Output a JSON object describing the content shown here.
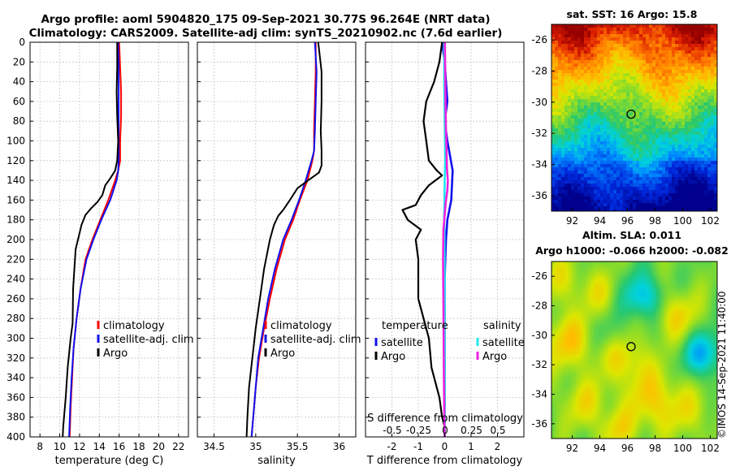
{
  "header": {
    "line1": "Argo profile: aoml 5904820_175 09-Sep-2021 30.77S 96.264E (NRT data)",
    "line2": "Climatology: CARS2009. Satellite-adj clim: synTS_20210902.nc (7.6d earlier)"
  },
  "copyright": "©IMOS 14-Sep-2021 11:40:00",
  "colors": {
    "clim": "#ff0000",
    "sat": "#1010ee",
    "argo": "#000000",
    "sal_sat": "#22e6ee",
    "sal_argo": "#ee22dd",
    "grid": "#c8c8c8",
    "marker": "#000000"
  },
  "chart_data": [
    {
      "id": "temperature",
      "type": "line",
      "xlabel": "temperature (deg C)",
      "ylabel": "",
      "xlim": [
        7,
        23
      ],
      "ylim": [
        400,
        0
      ],
      "xticks": [
        8,
        10,
        12,
        14,
        16,
        18,
        20,
        22
      ],
      "xtick_labels": [
        "8",
        "10",
        "12",
        "14",
        "16",
        "18",
        "20",
        "22"
      ],
      "yticks": [
        0,
        20,
        40,
        60,
        80,
        100,
        120,
        140,
        160,
        180,
        200,
        220,
        240,
        260,
        280,
        300,
        320,
        340,
        360,
        380,
        400
      ],
      "ytick_labels": [
        "0",
        "20",
        "40",
        "60",
        "80",
        "100",
        "120",
        "140",
        "160",
        "180",
        "200",
        "220",
        "240",
        "260",
        "280",
        "300",
        "320",
        "340",
        "360",
        "380",
        "400"
      ],
      "legend": [
        "climatology",
        "satellite-adj. clim",
        "Argo"
      ],
      "legend_placement": "center-right",
      "series": [
        {
          "name": "climatology",
          "x": [
            16.0,
            16.1,
            16.2,
            16.2,
            16.1,
            16.1,
            15.9,
            15.6,
            14.9,
            14.1,
            13.3,
            12.6,
            12.1,
            11.7,
            11.4,
            11.25,
            11.1,
            11.0
          ],
          "y": [
            0,
            25,
            50,
            75,
            100,
            120,
            130,
            140,
            160,
            180,
            200,
            220,
            250,
            280,
            310,
            340,
            370,
            400
          ]
        },
        {
          "name": "satellite-adj. clim",
          "x": [
            15.9,
            15.95,
            15.95,
            15.95,
            15.95,
            15.95,
            15.9,
            15.75,
            15.1,
            14.2,
            13.4,
            12.7,
            12.1,
            11.7,
            11.4,
            11.2,
            11.05,
            10.95
          ],
          "y": [
            0,
            25,
            50,
            75,
            100,
            120,
            130,
            140,
            160,
            180,
            200,
            220,
            250,
            280,
            310,
            340,
            370,
            400
          ]
        },
        {
          "name": "Argo",
          "x": [
            15.8,
            15.8,
            15.75,
            15.8,
            15.9,
            15.8,
            15.6,
            15.1,
            14.6,
            14.3,
            13.8,
            13.2,
            12.6,
            12.2,
            11.6,
            11.35,
            11.3,
            11.1,
            10.8,
            10.6,
            10.35,
            10.3
          ],
          "y": [
            0,
            25,
            50,
            75,
            100,
            120,
            130,
            138,
            145,
            155,
            162,
            168,
            175,
            185,
            210,
            250,
            285,
            300,
            330,
            360,
            390,
            400
          ]
        }
      ]
    },
    {
      "id": "salinity",
      "type": "line",
      "xlabel": "salinity",
      "ylabel": "",
      "xlim": [
        34.3,
        36.2
      ],
      "ylim": [
        400,
        0
      ],
      "xticks": [
        34.5,
        35,
        35.5,
        36
      ],
      "xtick_labels": [
        "34.5",
        "35",
        "35.5",
        "36"
      ],
      "legend": [
        "climatology",
        "satellite-adj. clim",
        "Argo"
      ],
      "legend_placement": "center-right",
      "series": [
        {
          "name": "climatology",
          "x": [
            35.72,
            35.72,
            35.71,
            35.7,
            35.7,
            35.68,
            35.62,
            35.53,
            35.45,
            35.35,
            35.25,
            35.17,
            35.1,
            35.04,
            35.0,
            34.97,
            34.95
          ],
          "y": [
            0,
            30,
            60,
            90,
            110,
            120,
            140,
            160,
            180,
            200,
            230,
            260,
            290,
            320,
            350,
            380,
            400
          ]
        },
        {
          "name": "satellite-adj. clim",
          "x": [
            35.71,
            35.73,
            35.72,
            35.71,
            35.7,
            35.67,
            35.6,
            35.52,
            35.43,
            35.33,
            35.23,
            35.15,
            35.09,
            35.03,
            35.0,
            34.97,
            34.95
          ],
          "y": [
            0,
            30,
            60,
            90,
            110,
            120,
            140,
            160,
            180,
            200,
            230,
            260,
            290,
            320,
            350,
            380,
            400
          ]
        },
        {
          "name": "Argo",
          "x": [
            35.75,
            35.79,
            35.79,
            35.78,
            35.79,
            35.79,
            35.76,
            35.63,
            35.5,
            35.41,
            35.33,
            35.27,
            35.22,
            35.17,
            35.1,
            35.05,
            35.0,
            34.96,
            34.92,
            34.9,
            34.89
          ],
          "y": [
            0,
            30,
            60,
            90,
            110,
            125,
            132,
            140,
            148,
            160,
            170,
            176,
            185,
            200,
            230,
            260,
            290,
            320,
            350,
            380,
            400
          ]
        }
      ]
    },
    {
      "id": "difference",
      "type": "line",
      "xlabel": "T difference from climatology",
      "top_label": "S difference from climatology",
      "ylabel": "",
      "xlim": [
        -3.0,
        3.0
      ],
      "ylim": [
        400,
        0
      ],
      "xticks": [
        -2,
        -1,
        0,
        1,
        2
      ],
      "xtick_labels": [
        "-2",
        "-1",
        "0",
        "1",
        "2"
      ],
      "s_xticks": [
        -0.5,
        -0.25,
        0,
        0.25,
        0.5
      ],
      "s_xtick_labels": [
        "-0.5",
        "-0.25",
        "0",
        "0.25",
        "0.5"
      ],
      "legend_titles": [
        "temperature",
        "salinity"
      ],
      "legend": [
        "satellite",
        "Argo",
        "satellite",
        "Argo"
      ],
      "legend_placement": "bottom",
      "series": [
        {
          "name": "temperature satellite",
          "x": [
            -0.1,
            0.0,
            0.05,
            0.1,
            0.0,
            0.1,
            0.3,
            0.25,
            0.1,
            0.05,
            0.0,
            0.0,
            0.0,
            0.0,
            0.0,
            0.0
          ],
          "y": [
            0,
            20,
            40,
            60,
            80,
            100,
            130,
            160,
            180,
            200,
            240,
            280,
            320,
            360,
            380,
            400
          ]
        },
        {
          "name": "temperature Argo",
          "x": [
            -0.1,
            -0.2,
            -0.4,
            -0.7,
            -0.8,
            -0.7,
            -0.6,
            -0.3,
            -0.1,
            -0.6,
            -0.9,
            -1.1,
            -1.6,
            -1.4,
            -0.9,
            -1.1,
            -1.0,
            -1.0,
            -0.6,
            -0.5,
            -0.2,
            -0.1,
            0.0,
            0.0
          ],
          "y": [
            0,
            20,
            40,
            60,
            80,
            100,
            120,
            130,
            135,
            145,
            155,
            165,
            170,
            180,
            190,
            200,
            220,
            260,
            300,
            330,
            360,
            380,
            390,
            400
          ]
        },
        {
          "name": "salinity satellite",
          "x": [
            -0.02,
            -0.02,
            0.0,
            0.02,
            0.0,
            -0.01,
            -0.02,
            -0.01,
            0.0,
            0.0,
            0.0,
            0.0,
            0.0
          ],
          "y": [
            0,
            40,
            80,
            120,
            140,
            160,
            180,
            200,
            240,
            280,
            320,
            360,
            400
          ]
        },
        {
          "name": "salinity Argo",
          "x": [
            0.01,
            0.02,
            0.03,
            0.05,
            0.07,
            0.09,
            0.12,
            0.1,
            0.05,
            0.0,
            -0.05,
            -0.06,
            -0.05,
            -0.04,
            -0.03,
            -0.02,
            -0.01,
            0.0
          ],
          "y": [
            0,
            30,
            60,
            90,
            110,
            130,
            140,
            150,
            160,
            175,
            190,
            220,
            260,
            300,
            340,
            370,
            390,
            400
          ]
        }
      ]
    },
    {
      "id": "sst_map",
      "type": "heatmap",
      "title": "sat. SST: 16 Argo: 15.8",
      "xlim": [
        90.5,
        102.5
      ],
      "ylim": [
        -37,
        -25
      ],
      "xticks": [
        92,
        94,
        96,
        98,
        100,
        102
      ],
      "xtick_labels": [
        "92",
        "94",
        "96",
        "98",
        "100",
        "102"
      ],
      "yticks": [
        -26,
        -28,
        -30,
        -32,
        -34,
        -36
      ],
      "ytick_labels": [
        "-26",
        "-28",
        "-30",
        "-32",
        "-34",
        "-36"
      ],
      "marker": {
        "lon": 96.264,
        "lat": -30.77
      }
    },
    {
      "id": "sla_map",
      "type": "heatmap",
      "title_line1": "Altim. SLA: 0.011",
      "title_line2": "Argo h1000: -0.066 h2000: -0.082",
      "xlim": [
        90.5,
        102.5
      ],
      "ylim": [
        -37,
        -25
      ],
      "xticks": [
        92,
        94,
        96,
        98,
        100,
        102
      ],
      "xtick_labels": [
        "92",
        "94",
        "96",
        "98",
        "100",
        "102"
      ],
      "yticks": [
        -26,
        -28,
        -30,
        -32,
        -34,
        -36
      ],
      "ytick_labels": [
        "-26",
        "-28",
        "-30",
        "-32",
        "-34",
        "-36"
      ],
      "marker": {
        "lon": 96.264,
        "lat": -30.77
      }
    }
  ]
}
